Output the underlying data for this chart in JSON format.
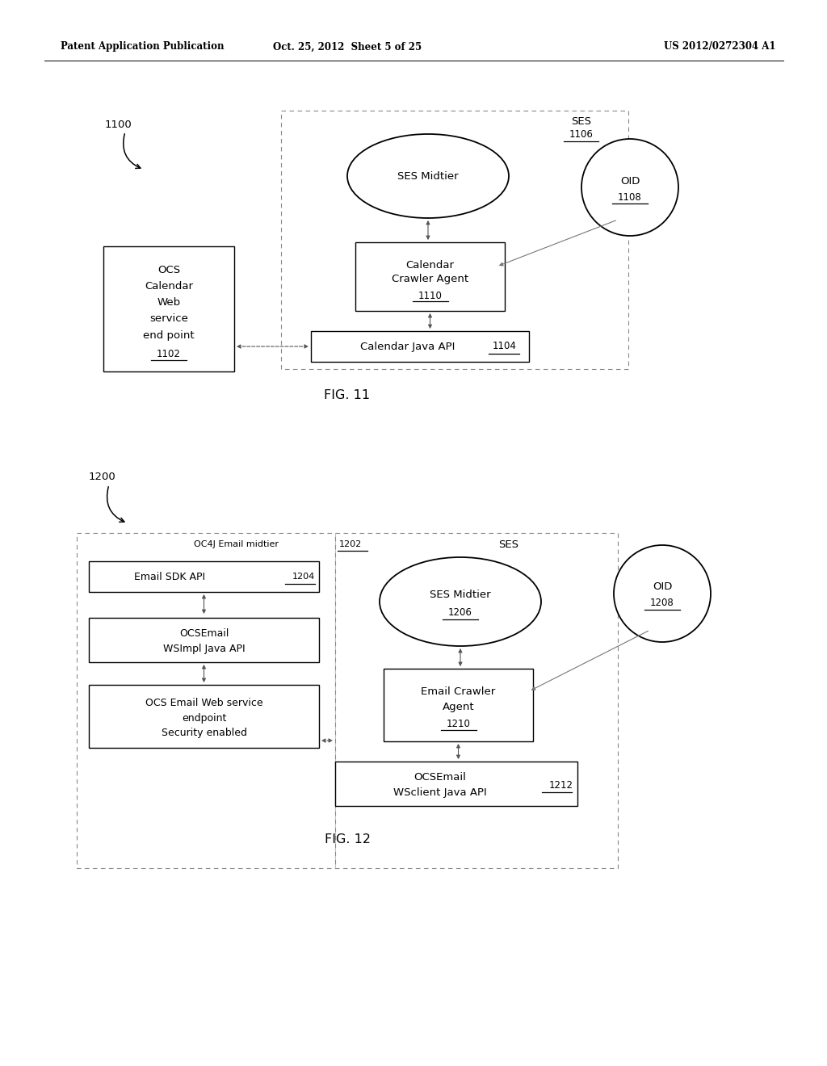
{
  "bg_color": "#ffffff",
  "header_left": "Patent Application Publication",
  "header_center": "Oct. 25, 2012  Sheet 5 of 25",
  "header_right": "US 2012/0272304 A1",
  "fig11": {
    "label": "1100",
    "fig_caption": "FIG. 11"
  },
  "fig12": {
    "label": "1200",
    "fig_caption": "FIG. 12"
  }
}
